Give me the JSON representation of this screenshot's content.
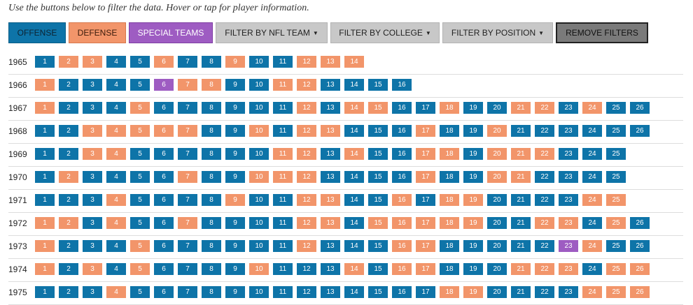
{
  "intro": "Use the buttons below to filter the data. Hover or tap for player information.",
  "colors": {
    "offense": "#0e74a8",
    "defense": "#f2956a",
    "special_teams": "#9e5cc2",
    "filter": "#c8c8c8",
    "remove": "#7a7a7a"
  },
  "buttons": [
    {
      "label": "OFFENSE",
      "kind": "offense",
      "dropdown": false
    },
    {
      "label": "DEFENSE",
      "kind": "defense",
      "dropdown": false
    },
    {
      "label": "SPECIAL TEAMS",
      "kind": "special",
      "dropdown": false
    },
    {
      "label": "FILTER BY NFL TEAM",
      "kind": "filter",
      "dropdown": true
    },
    {
      "label": "FILTER BY COLLEGE",
      "kind": "filter",
      "dropdown": true
    },
    {
      "label": "FILTER BY POSITION",
      "kind": "filter",
      "dropdown": true
    },
    {
      "label": "REMOVE FILTERS",
      "kind": "remove",
      "dropdown": false
    }
  ],
  "legend_codes": {
    "O": "offense",
    "D": "defense",
    "S": "special_teams"
  },
  "years": [
    {
      "year": "1965",
      "picks": "ODDOODOODOODDD"
    },
    {
      "year": "1966",
      "picks": "DOOOOSDDOODDOOOO"
    },
    {
      "year": "1967",
      "picks": "DOOODOOOOOODODDOODOODDODOO"
    },
    {
      "year": "1968",
      "picks": "OODDDDDOODODDOOODOODOOOOOO"
    },
    {
      "year": "1969",
      "picks": "OODDOOOOOODDODOODDODDDOOO"
    },
    {
      "year": "1970",
      "picks": "ODOOOODOODDDOOOODOODDOOOO"
    },
    {
      "year": "1971",
      "picks": "OOODOOOODOODDOODODDOOOODD"
    },
    {
      "year": "1972",
      "picks": "DDODOODOOOODDODDDDDOODDODO"
    },
    {
      "year": "1973",
      "picks": "DOOODOOOOOODOOODDOOOOOSDOO"
    },
    {
      "year": "1974",
      "picks": "DODODOOOODOOODODDOOODDDODD"
    },
    {
      "year": "1975",
      "picks": "OOODOOOOOOOOOOOOODDOOOODDD"
    }
  ]
}
